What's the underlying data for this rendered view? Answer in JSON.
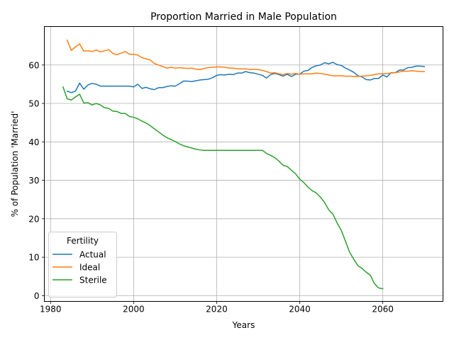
{
  "chart_data": {
    "type": "line",
    "title": "Proportion Married in Male Population",
    "xlabel": "Years",
    "ylabel": "% of Population 'Married'",
    "xlim": [
      1978.5,
      2074.5
    ],
    "ylim": [
      -1.5,
      70
    ],
    "xticks": [
      1980,
      2000,
      2020,
      2040,
      2060
    ],
    "yticks": [
      0,
      10,
      20,
      30,
      40,
      50,
      60
    ],
    "grid": true,
    "legend": {
      "title": "Fertility",
      "placement": "lower-left"
    },
    "series": [
      {
        "name": "Actual",
        "color": "#1f77b4",
        "x": [
          1984,
          1985,
          1986,
          1987,
          1988,
          1989,
          1990,
          1991,
          1992,
          1993,
          1994,
          1995,
          1996,
          1997,
          1998,
          1999,
          2000,
          2001,
          2002,
          2003,
          2004,
          2005,
          2006,
          2007,
          2008,
          2009,
          2010,
          2011,
          2012,
          2013,
          2014,
          2015,
          2016,
          2017,
          2018,
          2019,
          2020,
          2021,
          2022,
          2023,
          2024,
          2025,
          2026,
          2027,
          2028,
          2029,
          2030,
          2031,
          2032,
          2033,
          2034,
          2035,
          2036,
          2037,
          2038,
          2039,
          2040,
          2041,
          2042,
          2043,
          2044,
          2045,
          2046,
          2047,
          2048,
          2049,
          2050,
          2051,
          2052,
          2053,
          2054,
          2055,
          2056,
          2057,
          2058,
          2059,
          2060,
          2061,
          2062,
          2063,
          2064,
          2065,
          2066,
          2067,
          2068,
          2069,
          2070
        ],
        "y": [
          53.2,
          52.8,
          53.2,
          55.3,
          53.7,
          54.8,
          55.2,
          55.0,
          54.5,
          54.5,
          54.5,
          54.5,
          54.5,
          54.5,
          54.5,
          54.5,
          54.3,
          55.0,
          53.9,
          54.2,
          53.8,
          53.6,
          54.1,
          54.1,
          54.4,
          54.6,
          54.5,
          55.1,
          55.8,
          55.8,
          55.7,
          55.9,
          56.1,
          56.2,
          56.3,
          56.7,
          57.3,
          57.5,
          57.4,
          57.6,
          57.5,
          57.9,
          57.9,
          58.3,
          58.0,
          57.9,
          57.6,
          57.3,
          56.6,
          57.5,
          57.8,
          57.5,
          57.1,
          57.6,
          57.0,
          57.6,
          57.6,
          58.4,
          58.6,
          59.4,
          59.8,
          60.0,
          60.6,
          60.3,
          60.7,
          60.1,
          59.9,
          59.2,
          58.7,
          58.1,
          57.2,
          56.9,
          56.2,
          56.1,
          56.5,
          56.5,
          57.4,
          56.9,
          58.0,
          58.0,
          58.7,
          58.7,
          59.3,
          59.4,
          59.7,
          59.7,
          59.6
        ]
      },
      {
        "name": "Ideal",
        "color": "#ff7f0e",
        "x": [
          1984,
          1985,
          1986,
          1987,
          1988,
          1989,
          1990,
          1991,
          1992,
          1993,
          1994,
          1995,
          1996,
          1997,
          1998,
          1999,
          2000,
          2001,
          2002,
          2003,
          2004,
          2005,
          2006,
          2007,
          2008,
          2009,
          2010,
          2011,
          2012,
          2013,
          2014,
          2015,
          2016,
          2017,
          2018,
          2019,
          2020,
          2021,
          2022,
          2023,
          2024,
          2025,
          2026,
          2027,
          2028,
          2029,
          2030,
          2031,
          2032,
          2033,
          2034,
          2035,
          2036,
          2037,
          2038,
          2039,
          2040,
          2041,
          2042,
          2043,
          2044,
          2045,
          2046,
          2047,
          2048,
          2049,
          2050,
          2051,
          2052,
          2053,
          2054,
          2055,
          2056,
          2057,
          2058,
          2059,
          2060,
          2061,
          2062,
          2063,
          2064,
          2065,
          2066,
          2067,
          2068,
          2069,
          2070
        ],
        "y": [
          66.5,
          63.8,
          64.7,
          65.5,
          63.6,
          63.7,
          63.5,
          63.9,
          63.4,
          63.7,
          64.0,
          63.0,
          62.7,
          63.1,
          63.5,
          62.8,
          62.8,
          62.6,
          61.9,
          61.6,
          61.3,
          60.4,
          60.0,
          59.6,
          59.2,
          59.4,
          59.2,
          59.3,
          59.2,
          59.1,
          59.2,
          58.9,
          58.8,
          59.1,
          59.3,
          59.4,
          59.5,
          59.5,
          59.4,
          59.2,
          59.2,
          59.0,
          59.0,
          59.0,
          58.8,
          58.9,
          58.8,
          58.6,
          58.3,
          57.9,
          58.0,
          57.7,
          57.5,
          57.8,
          57.6,
          57.8,
          57.6,
          57.7,
          57.7,
          57.7,
          57.9,
          57.8,
          57.6,
          57.4,
          57.2,
          57.2,
          57.2,
          57.1,
          57.1,
          57.0,
          57.0,
          57.1,
          57.2,
          57.3,
          57.5,
          57.7,
          57.7,
          57.8,
          57.9,
          58.0,
          58.2,
          58.4,
          58.4,
          58.5,
          58.4,
          58.3,
          58.3
        ]
      },
      {
        "name": "Sterile",
        "color": "#2ca02c",
        "x": [
          1983,
          1984,
          1985,
          1986,
          1987,
          1988,
          1989,
          1990,
          1991,
          1992,
          1993,
          1994,
          1995,
          1996,
          1997,
          1998,
          1999,
          2000,
          2001,
          2002,
          2003,
          2004,
          2005,
          2006,
          2007,
          2008,
          2009,
          2010,
          2011,
          2012,
          2013,
          2014,
          2015,
          2016,
          2017,
          2018,
          2019,
          2020,
          2021,
          2022,
          2023,
          2024,
          2025,
          2026,
          2027,
          2028,
          2029,
          2030,
          2031,
          2032,
          2033,
          2034,
          2035,
          2036,
          2037,
          2038,
          2039,
          2040,
          2041,
          2042,
          2043,
          2044,
          2045,
          2046,
          2047,
          2048,
          2049,
          2050,
          2051,
          2052,
          2053,
          2054,
          2055,
          2056,
          2057,
          2058,
          2059,
          2060
        ],
        "y": [
          54.3,
          51.2,
          50.9,
          51.7,
          52.4,
          50.1,
          50.2,
          49.6,
          50.0,
          49.6,
          48.9,
          48.7,
          48.0,
          47.9,
          47.4,
          47.4,
          46.6,
          46.4,
          46.0,
          45.4,
          44.9,
          44.2,
          43.4,
          42.6,
          41.8,
          41.1,
          40.6,
          40.1,
          39.5,
          39.0,
          38.7,
          38.4,
          38.1,
          37.9,
          37.8,
          37.8,
          37.8,
          37.8,
          37.8,
          37.8,
          37.8,
          37.8,
          37.8,
          37.8,
          37.8,
          37.8,
          37.8,
          37.8,
          37.8,
          37.0,
          36.5,
          35.9,
          35.0,
          33.9,
          33.6,
          32.6,
          31.7,
          30.3,
          29.4,
          28.2,
          27.3,
          26.7,
          25.6,
          24.2,
          22.3,
          21.2,
          18.9,
          17.0,
          14.2,
          11.3,
          9.5,
          7.8,
          7.1,
          6.1,
          5.3,
          3.1,
          2.0,
          1.8
        ]
      }
    ]
  }
}
